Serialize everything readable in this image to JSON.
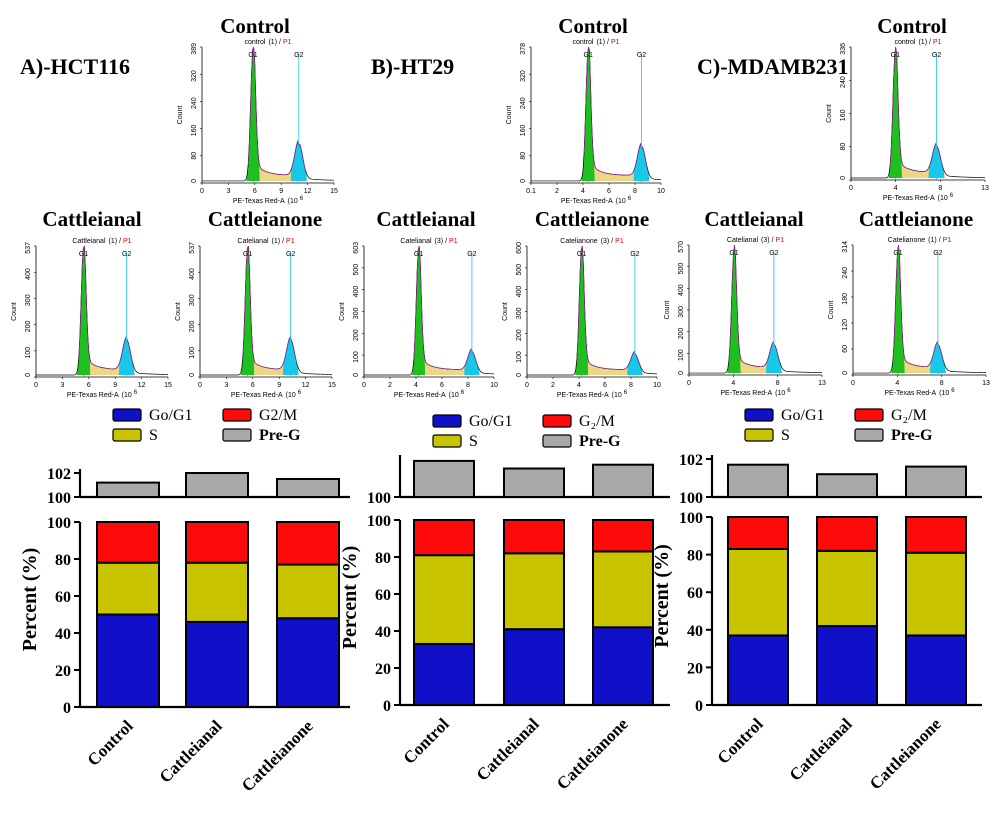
{
  "colors": {
    "g1": "#1010c8",
    "s": "#c8c400",
    "g2m": "#ff0a0a",
    "preg": "#a8a8a8",
    "hist_g1": "#1fbf1f",
    "hist_g2": "#19c8e8",
    "hist_s": "#e8d070",
    "hist_line": "#a020a0"
  },
  "panels": [
    {
      "label": "A)-HCT116",
      "histograms": [
        {
          "title": "Control",
          "sample": "control",
          "sample_no": "(1)",
          "gate": "P1",
          "ymax": "389",
          "yticks": [
            "0",
            "80",
            "160",
            "240",
            "320",
            "389"
          ],
          "xticks": [
            "0",
            "3",
            "6",
            "9",
            "12",
            "15"
          ],
          "g1x": 5.8,
          "g2x": 11.0,
          "xmax": 15,
          "g1h": 0.98,
          "g2h": 0.26
        },
        {
          "title": "Cattleianal",
          "sample": "Cattleianal",
          "sample_no": "(1)",
          "gate": "P1",
          "ymax": "537",
          "yticks": [
            "0",
            "100",
            "200",
            "300",
            "400",
            "537"
          ],
          "xticks": [
            "0",
            "3",
            "6",
            "9",
            "12",
            "15"
          ],
          "g1x": 5.4,
          "g2x": 10.3,
          "xmax": 15,
          "g1h": 0.97,
          "g2h": 0.25
        },
        {
          "title": "Cattleianone",
          "sample": "Catelianal",
          "sample_no": "(1)",
          "gate": "P1",
          "ymax": "537",
          "yticks": [
            "0",
            "100",
            "200",
            "300",
            "400",
            "537"
          ],
          "xticks": [
            "0",
            "3",
            "6",
            "9",
            "12",
            "15"
          ],
          "g1x": 5.4,
          "g2x": 10.3,
          "xmax": 15,
          "g1h": 0.97,
          "g2h": 0.25
        }
      ],
      "bars": {
        "ylabel": "Percent (%)",
        "top_ticks": [
          "100",
          "102"
        ],
        "categories": [
          "Control",
          "Cattleianal",
          "Cattleianone"
        ]
      },
      "legend": {
        "g1": "Go/G1",
        "g2m": "G2/M",
        "s": "S",
        "preg": "Pre-G"
      }
    },
    {
      "label": "B)-HT29",
      "histograms": [
        {
          "title": "Control",
          "sample": "control",
          "sample_no": "(1)",
          "gate": "P1",
          "ymax": "378",
          "yticks": [
            "0",
            "80",
            "160",
            "240",
            "320",
            "378"
          ],
          "xticks": [
            "0.1",
            "2",
            "4",
            "6",
            "8",
            "10"
          ],
          "g1x": 4.4,
          "g2x": 8.5,
          "xmax": 10,
          "g1h": 0.97,
          "g2h": 0.24
        },
        {
          "title": "Cattleianal",
          "sample": "Catelianal",
          "sample_no": "(3)",
          "gate": "P1",
          "ymax": "603",
          "yticks": [
            "0",
            "100",
            "200",
            "300",
            "400",
            "500",
            "603"
          ],
          "xticks": [
            "0",
            "2",
            "4",
            "6",
            "8",
            "10"
          ],
          "g1x": 4.2,
          "g2x": 8.3,
          "xmax": 10,
          "g1h": 0.97,
          "g2h": 0.16
        },
        {
          "title": "Cattleianone",
          "sample": "Catelianone",
          "sample_no": "(3)",
          "gate": "P1",
          "ymax": "600",
          "yticks": [
            "0",
            "100",
            "200",
            "300",
            "400",
            "500",
            "600"
          ],
          "xticks": [
            "0",
            "2",
            "4",
            "6",
            "8",
            "10"
          ],
          "g1x": 4.2,
          "g2x": 8.3,
          "xmax": 10,
          "g1h": 0.97,
          "g2h": 0.14
        }
      ],
      "bars": {
        "ylabel": "Percent (%)",
        "top_ticks": [
          "100"
        ],
        "categories": [
          "Control",
          "Cattleianal",
          "Cattleianone"
        ]
      },
      "legend": {
        "g1": "Go/G1",
        "g2m": "G₂/M",
        "s": "S",
        "preg": "Pre-G"
      }
    },
    {
      "label": "C)-MDAMB231",
      "histograms": [
        {
          "title": "Control",
          "sample": "control",
          "sample_no": "(1)",
          "gate": "P1",
          "ymax": "336",
          "yticks": [
            "0",
            "80",
            "160",
            "240",
            "336"
          ],
          "xticks": [
            "0",
            "4",
            "8",
            "13"
          ],
          "g1x": 4.3,
          "g2x": 8.3,
          "xmax": 13,
          "g1h": 0.96,
          "g2h": 0.22
        },
        {
          "title": "Cattleianal",
          "sample": "Catelianal",
          "sample_no": "(3)",
          "gate": "P1",
          "ymax": "570",
          "yticks": [
            "0",
            "100",
            "200",
            "300",
            "400",
            "500",
            "570"
          ],
          "xticks": [
            "0",
            "4",
            "8",
            "13"
          ],
          "g1x": 4.4,
          "g2x": 8.3,
          "xmax": 13,
          "g1h": 0.94,
          "g2h": 0.2
        },
        {
          "title": "Cattleianone",
          "sample": "Catelianone",
          "sample_no": "(1)",
          "gate": "P1",
          "ymax": "314",
          "yticks": [
            "0",
            "60",
            "120",
            "180",
            "240",
            "314"
          ],
          "xticks": [
            "0",
            "4",
            "8",
            "13"
          ],
          "g1x": 4.4,
          "g2x": 8.3,
          "xmax": 13,
          "g1h": 0.95,
          "g2h": 0.2
        }
      ],
      "bars": {
        "ylabel": "Percent (%)",
        "top_ticks": [
          "100",
          "102"
        ],
        "categories": [
          "Control",
          "Cattleianal",
          "Cattleianone"
        ]
      },
      "legend": {
        "g1": "Go/G1",
        "g2m": "G₂/M",
        "s": "S",
        "preg": "Pre-G"
      }
    }
  ],
  "hist_common": {
    "xlabel": "PE-Texas Red-A",
    "xunit": "(10",
    "xexp": "6",
    "ylabel": "Count",
    "g1_label": "G1",
    "g2_label": "G2"
  },
  "chart_data": [
    {
      "type": "bar",
      "stacked": true,
      "title": "A)-HCT116",
      "categories": [
        "Control",
        "Cattleianal",
        "Cattleianone"
      ],
      "ylabel": "Percent (%)",
      "ylim": [
        0,
        100
      ],
      "yticks": [
        0,
        20,
        40,
        60,
        80,
        100
      ],
      "series": [
        {
          "name": "Go/G1",
          "values": [
            50,
            46,
            48
          ]
        },
        {
          "name": "S",
          "values": [
            28,
            32,
            29
          ]
        },
        {
          "name": "G2/M",
          "values": [
            22,
            22,
            23
          ]
        }
      ],
      "pre_g": {
        "name": "Pre-G",
        "ylim": [
          100,
          102
        ],
        "values": [
          101.2,
          102.0,
          101.5
        ]
      }
    },
    {
      "type": "bar",
      "stacked": true,
      "title": "B)-HT29",
      "categories": [
        "Control",
        "Cattleianal",
        "Cattleianone"
      ],
      "ylabel": "Percent (%)",
      "ylim": [
        0,
        100
      ],
      "yticks": [
        0,
        20,
        40,
        60,
        80,
        100
      ],
      "series": [
        {
          "name": "Go/G1",
          "values": [
            33,
            41,
            42
          ]
        },
        {
          "name": "S",
          "values": [
            48,
            41,
            41
          ]
        },
        {
          "name": "G2/M",
          "values": [
            19,
            18,
            17
          ]
        }
      ],
      "pre_g": {
        "name": "Pre-G",
        "ylim": [
          100,
          102
        ],
        "values": [
          101.9,
          101.5,
          101.7
        ]
      }
    },
    {
      "type": "bar",
      "stacked": true,
      "title": "C)-MDAMB231",
      "categories": [
        "Control",
        "Cattleianal",
        "Cattleianone"
      ],
      "ylabel": "Percent (%)",
      "ylim": [
        0,
        100
      ],
      "yticks": [
        0,
        20,
        40,
        60,
        80,
        100
      ],
      "series": [
        {
          "name": "Go/G1",
          "values": [
            37,
            42,
            37
          ]
        },
        {
          "name": "S",
          "values": [
            46,
            40,
            44
          ]
        },
        {
          "name": "G2/M",
          "values": [
            17,
            18,
            19
          ]
        }
      ],
      "pre_g": {
        "name": "Pre-G",
        "ylim": [
          100,
          102
        ],
        "values": [
          101.7,
          101.2,
          101.6
        ]
      }
    }
  ]
}
